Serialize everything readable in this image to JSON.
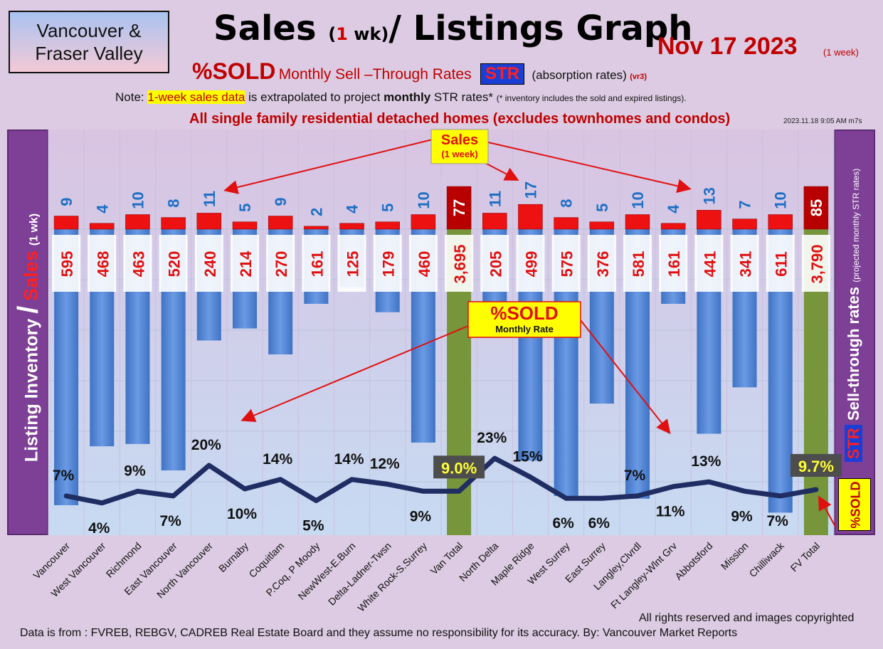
{
  "header": {
    "region_line1": "Vancouver &",
    "region_line2": "Fraser Valley",
    "title_sales": "Sales ",
    "title_paren_open": "(",
    "title_one": "1",
    "title_wk": " wk)",
    "title_rest": "/ Listings Graph",
    "date": "Nov 17  2023",
    "date_note": "(1 week)",
    "subtitle_sold": "%SOLD",
    "subtitle_rates": "Monthly Sell –Through Rates",
    "subtitle_str": "STR",
    "subtitle_abs": "(absorption rates)",
    "subtitle_vr": "(vr3)",
    "note_prefix": "Note: ",
    "note_highlight": "1-week sales data",
    "note_mid": " is extrapolated to project ",
    "note_bold": "monthly",
    "note_end": " STR rates* ",
    "note_small": "(* inventory includes the sold and expired listings).",
    "scope": "All single family residential detached homes (excludes townhomes and condos)",
    "timestamp": "2023.11.18 9:05 AM m7s"
  },
  "side": {
    "left_main": "Listing Inventory",
    "left_slash": "/",
    "left_sales": "Sales",
    "left_small": "(1 wk)",
    "right_main": "Sell-through rates",
    "right_str": "STR",
    "right_small": "(projected monthly STR rates)",
    "sold_tag": "%SOLD"
  },
  "callouts": {
    "sales_label": "Sales",
    "sales_sub": "(1 week)",
    "sold_label": "%SOLD",
    "sold_sub": "Monthly Rate"
  },
  "footer": {
    "rights": "All rights reserved and  images copyrighted",
    "source": "Data is from : FVREB, REBGV, CADREB Real Estate Board and they assume no responsibility for its accuracy. By: Vancouver Market Reports"
  },
  "colors": {
    "inventory_bar": "#4f86d6",
    "total_bar": "#77953a",
    "sales_bar": "#ee1111",
    "total_sales_bar": "#b80000",
    "sales_label": "#1f6fc4",
    "inventory_label": "#e01010",
    "line_high": "#e8162b",
    "line_low": "#1f2d63",
    "total_tag_bg": "#4d4d4d",
    "total_tag_text": "#ffff33"
  },
  "chart_data": {
    "type": "bar",
    "title": "Sales (1 wk)/ Listings Graph",
    "categories": [
      "Vancouver",
      "West Vancouver",
      "Richmond",
      "East Vancouver",
      "North Vancouver",
      "Burnaby",
      "Coquitlam",
      "P.Coq, P Moody",
      "NewWest-E.Burn",
      "Delta-Ladner-Twsn",
      "White Rock-S.Surrey",
      "Van Total",
      "North Delta",
      "Maple Ridge",
      "West Surrey",
      "East Surrey",
      "Langley,Clvrdl",
      "Ft Langley-Wlnt Grv",
      "Abbotsford",
      "Mission",
      "Chilliwack",
      "FV Total"
    ],
    "series": [
      {
        "name": "Listing Inventory",
        "values": [
          595,
          468,
          463,
          520,
          240,
          214,
          270,
          161,
          125,
          179,
          460,
          3695,
          205,
          499,
          575,
          376,
          581,
          161,
          441,
          341,
          611,
          3790
        ]
      },
      {
        "name": "Sales",
        "values": [
          9,
          4,
          10,
          8,
          11,
          5,
          9,
          2,
          4,
          5,
          10,
          77,
          11,
          17,
          8,
          5,
          10,
          4,
          13,
          7,
          10,
          85
        ]
      },
      {
        "name": "%SOLD",
        "values": [
          7,
          4,
          9,
          7,
          20,
          10,
          14,
          5,
          14,
          12,
          9,
          9.0,
          23,
          15,
          6,
          6,
          7,
          11,
          13,
          9,
          7,
          9.7
        ]
      }
    ],
    "inventory_labels": [
      "595",
      "468",
      "463",
      "520",
      "240",
      "214",
      "270",
      "161",
      "125",
      "179",
      "460",
      "3,695",
      "205",
      "499",
      "575",
      "376",
      "581",
      "161",
      "441",
      "341",
      "611",
      "3,790"
    ],
    "sales_labels": [
      "9",
      "4",
      "10",
      "8",
      "11",
      "5",
      "9",
      "2",
      "4",
      "5",
      "10",
      "77",
      "11",
      "17",
      "8",
      "5",
      "10",
      "4",
      "13",
      "7",
      "10",
      "85"
    ],
    "sold_labels": [
      "7%",
      "4%",
      "9%",
      "7%",
      "20%",
      "10%",
      "14%",
      "5%",
      "14%",
      "12%",
      "9%",
      "9.0%",
      "23%",
      "15%",
      "6%",
      "6%",
      "7%",
      "11%",
      "13%",
      "9%",
      "7%",
      "9.7%"
    ],
    "total_indices": [
      11,
      21
    ],
    "sold_ylim": [
      0,
      30
    ],
    "grid": true
  }
}
